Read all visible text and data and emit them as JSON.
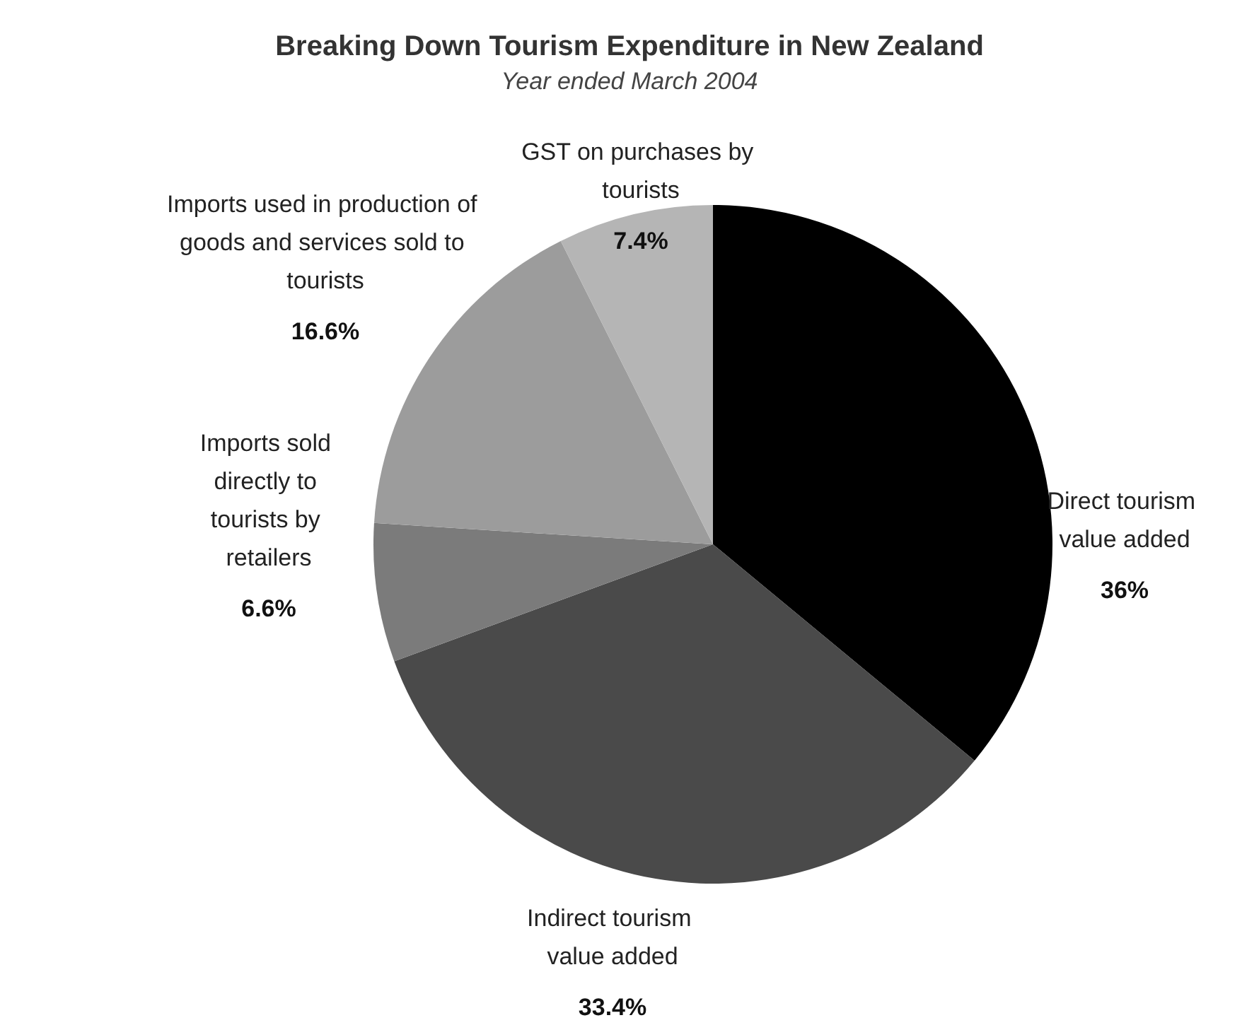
{
  "chart_data": {
    "type": "pie",
    "title": "Breaking Down Tourism Expenditure in New Zealand",
    "subtitle": "Year ended March 2004",
    "categories": [
      "Direct tourism value added",
      "Indirect tourism value added",
      "Imports sold directly to tourists by retailers",
      "Imports used in production of goods and services sold to tourists",
      "GST on purchases by tourists"
    ],
    "values": [
      36,
      33.4,
      6.6,
      16.6,
      7.4
    ],
    "value_labels": [
      "36%",
      "33.4%",
      "6.6%",
      "16.6%",
      "7.4%"
    ],
    "colors": [
      "#000000",
      "#4a4a4a",
      "#7b7b7b",
      "#9c9c9c",
      "#b5b5b5"
    ],
    "legend": false
  }
}
